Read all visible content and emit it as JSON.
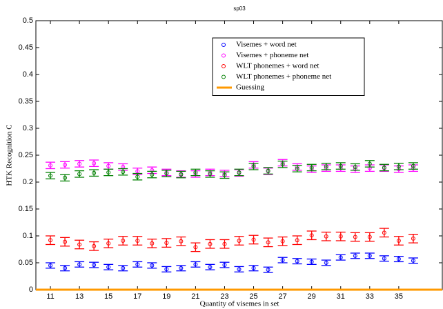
{
  "chart_data": {
    "type": "errorbar",
    "title": "sp03",
    "x_label": "Quantity of visemes in set",
    "y_label": "HTK Recognition C",
    "x": [
      11,
      12,
      13,
      14,
      15,
      16,
      17,
      18,
      19,
      20,
      21,
      22,
      23,
      24,
      25,
      26,
      27,
      28,
      29,
      30,
      31,
      32,
      33,
      34,
      35,
      36
    ],
    "series": [
      {
        "name": "Visemes + word net",
        "color": "#0000ff",
        "error": 0.005,
        "values": [
          0.045,
          0.04,
          0.047,
          0.046,
          0.042,
          0.04,
          0.047,
          0.045,
          0.038,
          0.04,
          0.047,
          0.042,
          0.046,
          0.038,
          0.04,
          0.037,
          0.055,
          0.053,
          0.052,
          0.05,
          0.06,
          0.063,
          0.063,
          0.058,
          0.057,
          0.054
        ]
      },
      {
        "name": "Visemes + phoneme net",
        "color": "#ff00ff",
        "error": 0.006,
        "values": [
          0.231,
          0.232,
          0.234,
          0.235,
          0.23,
          0.228,
          0.22,
          0.222,
          0.218,
          0.215,
          0.215,
          0.218,
          0.216,
          0.217,
          0.232,
          0.22,
          0.236,
          0.228,
          0.224,
          0.226,
          0.226,
          0.224,
          0.226,
          0.226,
          0.224,
          0.226
        ]
      },
      {
        "name": "WLT phonemes + word net",
        "color": "#ff0000",
        "error": 0.008,
        "values": [
          0.092,
          0.089,
          0.084,
          0.081,
          0.086,
          0.091,
          0.091,
          0.086,
          0.087,
          0.09,
          0.079,
          0.085,
          0.085,
          0.091,
          0.093,
          0.088,
          0.09,
          0.092,
          0.101,
          0.099,
          0.099,
          0.098,
          0.098,
          0.106,
          0.091,
          0.095
        ]
      },
      {
        "name": "WLT phonemes + phoneme net",
        "color": "#008000",
        "error": 0.006,
        "values": [
          0.212,
          0.208,
          0.215,
          0.217,
          0.218,
          0.219,
          0.21,
          0.214,
          0.216,
          0.214,
          0.218,
          0.215,
          0.213,
          0.218,
          0.229,
          0.221,
          0.233,
          0.225,
          0.227,
          0.229,
          0.23,
          0.228,
          0.234,
          0.227,
          0.229,
          0.23
        ]
      }
    ],
    "guessing": {
      "name": "Guessing",
      "color": "#ff9900",
      "value": 0
    },
    "xlim": [
      10,
      38
    ],
    "ylim": [
      0,
      0.5
    ],
    "xticks": [
      11,
      13,
      15,
      17,
      19,
      21,
      23,
      25,
      27,
      29,
      31,
      33,
      35
    ],
    "yticks": [
      0,
      0.05,
      0.1,
      0.15,
      0.2,
      0.25,
      0.3,
      0.35,
      0.4,
      0.45,
      0.5
    ]
  }
}
